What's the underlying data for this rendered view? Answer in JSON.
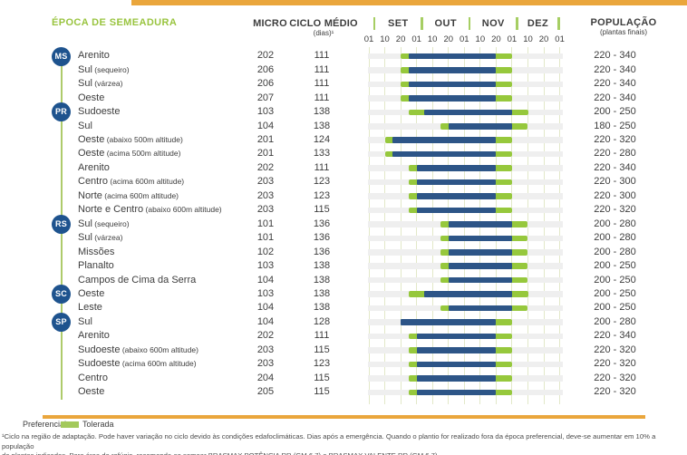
{
  "header": {
    "title": "ÉPOCA DE SEMEADURA",
    "micro": "MICRO",
    "ciclo": "CICLO MÉDIO",
    "ciclo_sub": "(dias)¹",
    "populacao": "POPULAÇÃO",
    "populacao_sub": "(plantas finais)"
  },
  "timeline": {
    "months": [
      "SET",
      "OUT",
      "NOV",
      "DEZ"
    ],
    "ticks": [
      "01",
      "10",
      "20",
      "01",
      "10",
      "20",
      "01",
      "10",
      "20",
      "01",
      "10",
      "20",
      "01"
    ]
  },
  "legend": {
    "preferencial_label": "Preferencial",
    "tolerada_label": "Tolerada"
  },
  "footnote": "¹Ciclo na região de adaptação. Pode haver variação no ciclo devido às condições edafoclimáticas. Dias após a emergência. Quando o plantio for realizado fora da época preferencial, deve-se aumentar em 10% a população\nde plantas indicadas. Para área de refúgio, recomenda-se semear BRASMAX POTÊNCIA RR (GM 6.7) e BRASMAX VALENTE RR (GM 6.7).",
  "colors": {
    "preferencial": "#2D5587",
    "tolerada": "#96C83C",
    "accent_orange": "#EAA63C",
    "badge_blue": "#1E538E",
    "title_green": "#99C43F",
    "grid_line": "#E2E8C8",
    "month_separator": "#A6CE63",
    "row_track": "#EFEFEF",
    "text": "#3D3D3D"
  },
  "chart_data": {
    "type": "gantt",
    "title": "ÉPOCA DE SEMEADURA",
    "legend": [
      "Preferencial",
      "Tolerada"
    ],
    "x_axis": {
      "unit": "ticks of ~10 days, 0 = 01/09 (SET) to 12 = 01/01",
      "tick_dates": [
        "01/09",
        "10/09",
        "20/09",
        "01/10",
        "10/10",
        "20/10",
        "01/11",
        "10/11",
        "20/11",
        "01/12",
        "10/12",
        "20/12",
        "01/01"
      ]
    },
    "rows": [
      {
        "state": "MS",
        "region": "Arenito",
        "note": "",
        "micro": "202",
        "ciclo": "111",
        "tol": [
          2,
          9
        ],
        "pref": [
          2.5,
          8
        ],
        "tol_dates": [
          "20/09",
          "01/12"
        ],
        "pref_dates": [
          "25/09",
          "20/11"
        ],
        "pop": "220 - 340"
      },
      {
        "state": "",
        "region": "Sul",
        "note": "(sequeiro)",
        "micro": "206",
        "ciclo": "111",
        "tol": [
          2,
          9
        ],
        "pref": [
          2.5,
          8
        ],
        "tol_dates": [
          "20/09",
          "01/12"
        ],
        "pref_dates": [
          "25/09",
          "20/11"
        ],
        "pop": "220 - 340"
      },
      {
        "state": "",
        "region": "Sul",
        "note": "(várzea)",
        "micro": "206",
        "ciclo": "111",
        "tol": [
          2,
          9
        ],
        "pref": [
          2.5,
          8
        ],
        "tol_dates": [
          "20/09",
          "01/12"
        ],
        "pref_dates": [
          "25/09",
          "20/11"
        ],
        "pop": "220 - 340"
      },
      {
        "state": "",
        "region": "Oeste",
        "note": "",
        "micro": "207",
        "ciclo": "111",
        "tol": [
          2,
          9
        ],
        "pref": [
          2.5,
          8
        ],
        "tol_dates": [
          "20/09",
          "01/12"
        ],
        "pref_dates": [
          "25/09",
          "20/11"
        ],
        "pop": "220 - 340"
      },
      {
        "state": "PR",
        "region": "Sudoeste",
        "note": "",
        "micro": "103",
        "ciclo": "138",
        "tol": [
          2.5,
          10
        ],
        "pref": [
          3.5,
          9
        ],
        "tol_dates": [
          "25/09",
          "10/12"
        ],
        "pref_dates": [
          "05/10",
          "01/12"
        ],
        "pop": "200 - 250"
      },
      {
        "state": "",
        "region": "Sul",
        "note": "",
        "micro": "104",
        "ciclo": "138",
        "tol": [
          4.5,
          10
        ],
        "pref": [
          5,
          9
        ],
        "tol_dates": [
          "15/10",
          "10/12"
        ],
        "pref_dates": [
          "20/10",
          "01/12"
        ],
        "pop": "180 - 250"
      },
      {
        "state": "",
        "region": "Oeste",
        "note": "(abaixo 500m altitude)",
        "micro": "201",
        "ciclo": "124",
        "tol": [
          1,
          9
        ],
        "pref": [
          1.5,
          8
        ],
        "tol_dates": [
          "10/09",
          "01/12"
        ],
        "pref_dates": [
          "15/09",
          "20/11"
        ],
        "pop": "220 - 320"
      },
      {
        "state": "",
        "region": "Oeste",
        "note": "(acima 500m altitude)",
        "micro": "201",
        "ciclo": "133",
        "tol": [
          1,
          9
        ],
        "pref": [
          1.5,
          8
        ],
        "tol_dates": [
          "10/09",
          "01/12"
        ],
        "pref_dates": [
          "15/09",
          "20/11"
        ],
        "pop": "220 - 280"
      },
      {
        "state": "",
        "region": "Arenito",
        "note": "",
        "micro": "202",
        "ciclo": "111",
        "tol": [
          2.5,
          9
        ],
        "pref": [
          3,
          8
        ],
        "tol_dates": [
          "25/09",
          "01/12"
        ],
        "pref_dates": [
          "01/10",
          "20/11"
        ],
        "pop": "220 - 340"
      },
      {
        "state": "",
        "region": "Centro",
        "note": "(acima 600m altitude)",
        "micro": "203",
        "ciclo": "123",
        "tol": [
          2.5,
          9
        ],
        "pref": [
          3,
          8
        ],
        "tol_dates": [
          "25/09",
          "01/12"
        ],
        "pref_dates": [
          "01/10",
          "20/11"
        ],
        "pop": "220 - 300"
      },
      {
        "state": "",
        "region": "Norte",
        "note": "(acima 600m altitude)",
        "micro": "203",
        "ciclo": "123",
        "tol": [
          2.5,
          9
        ],
        "pref": [
          3,
          8
        ],
        "tol_dates": [
          "25/09",
          "01/12"
        ],
        "pref_dates": [
          "01/10",
          "20/11"
        ],
        "pop": "220 - 300"
      },
      {
        "state": "",
        "region": "Norte e Centro",
        "note": "(abaixo 600m altitude)",
        "micro": "203",
        "ciclo": "115",
        "tol": [
          2.5,
          9
        ],
        "pref": [
          3,
          8
        ],
        "tol_dates": [
          "25/09",
          "01/12"
        ],
        "pref_dates": [
          "01/10",
          "20/11"
        ],
        "pop": "220 - 320"
      },
      {
        "state": "RS",
        "region": "Sul",
        "note": "(sequeiro)",
        "micro": "101",
        "ciclo": "136",
        "tol": [
          4.5,
          10
        ],
        "pref": [
          5,
          9
        ],
        "tol_dates": [
          "15/10",
          "10/12"
        ],
        "pref_dates": [
          "20/10",
          "01/12"
        ],
        "pop": "200 - 280"
      },
      {
        "state": "",
        "region": "Sul",
        "note": "(várzea)",
        "micro": "101",
        "ciclo": "136",
        "tol": [
          4.5,
          10
        ],
        "pref": [
          5,
          9
        ],
        "tol_dates": [
          "15/10",
          "10/12"
        ],
        "pref_dates": [
          "20/10",
          "01/12"
        ],
        "pop": "200 - 280"
      },
      {
        "state": "",
        "region": "Missões",
        "note": "",
        "micro": "102",
        "ciclo": "136",
        "tol": [
          4.5,
          10
        ],
        "pref": [
          5,
          9
        ],
        "tol_dates": [
          "15/10",
          "10/12"
        ],
        "pref_dates": [
          "20/10",
          "01/12"
        ],
        "pop": "200 - 280"
      },
      {
        "state": "",
        "region": "Planalto",
        "note": "",
        "micro": "103",
        "ciclo": "138",
        "tol": [
          4.5,
          10
        ],
        "pref": [
          5,
          9
        ],
        "tol_dates": [
          "15/10",
          "10/12"
        ],
        "pref_dates": [
          "20/10",
          "01/12"
        ],
        "pop": "200 - 250"
      },
      {
        "state": "",
        "region": "Campos de Cima da Serra",
        "note": "",
        "micro": "104",
        "ciclo": "138",
        "tol": [
          4.5,
          10
        ],
        "pref": [
          5,
          9
        ],
        "tol_dates": [
          "15/10",
          "10/12"
        ],
        "pref_dates": [
          "20/10",
          "01/12"
        ],
        "pop": "200 - 250"
      },
      {
        "state": "SC",
        "region": "Oeste",
        "note": "",
        "micro": "103",
        "ciclo": "138",
        "tol": [
          2.5,
          10
        ],
        "pref": [
          3.5,
          9
        ],
        "tol_dates": [
          "25/09",
          "10/12"
        ],
        "pref_dates": [
          "05/10",
          "01/12"
        ],
        "pop": "200 - 250"
      },
      {
        "state": "",
        "region": "Leste",
        "note": "",
        "micro": "104",
        "ciclo": "138",
        "tol": [
          4.5,
          10
        ],
        "pref": [
          5,
          9
        ],
        "tol_dates": [
          "15/10",
          "10/12"
        ],
        "pref_dates": [
          "20/10",
          "01/12"
        ],
        "pop": "200 - 250"
      },
      {
        "state": "SP",
        "region": "Sul",
        "note": "",
        "micro": "104",
        "ciclo": "128",
        "tol": [
          2,
          9
        ],
        "pref": [
          2,
          8
        ],
        "tol_dates": [
          "20/09",
          "01/12"
        ],
        "pref_dates": [
          "20/09",
          "20/11"
        ],
        "pop": "200 - 280"
      },
      {
        "state": "",
        "region": "Arenito",
        "note": "",
        "micro": "202",
        "ciclo": "111",
        "tol": [
          2.5,
          9
        ],
        "pref": [
          3,
          8
        ],
        "tol_dates": [
          "25/09",
          "01/12"
        ],
        "pref_dates": [
          "01/10",
          "20/11"
        ],
        "pop": "220 - 340"
      },
      {
        "state": "",
        "region": "Sudoeste",
        "note": "(abaixo 600m altitude)",
        "micro": "203",
        "ciclo": "115",
        "tol": [
          2.5,
          9
        ],
        "pref": [
          3,
          8
        ],
        "tol_dates": [
          "25/09",
          "01/12"
        ],
        "pref_dates": [
          "01/10",
          "20/11"
        ],
        "pop": "220 - 320"
      },
      {
        "state": "",
        "region": "Sudoeste",
        "note": "(acima 600m altitude)",
        "micro": "203",
        "ciclo": "123",
        "tol": [
          2.5,
          9
        ],
        "pref": [
          3,
          8
        ],
        "tol_dates": [
          "25/09",
          "01/12"
        ],
        "pref_dates": [
          "01/10",
          "20/11"
        ],
        "pop": "220 - 320"
      },
      {
        "state": "",
        "region": "Centro",
        "note": "",
        "micro": "204",
        "ciclo": "115",
        "tol": [
          2.5,
          9
        ],
        "pref": [
          3,
          8
        ],
        "tol_dates": [
          "25/09",
          "01/12"
        ],
        "pref_dates": [
          "01/10",
          "20/11"
        ],
        "pop": "220 - 320"
      },
      {
        "state": "",
        "region": "Oeste",
        "note": "",
        "micro": "205",
        "ciclo": "115",
        "tol": [
          2.5,
          9
        ],
        "pref": [
          3,
          8
        ],
        "tol_dates": [
          "25/09",
          "01/12"
        ],
        "pref_dates": [
          "01/10",
          "20/11"
        ],
        "pop": "220 - 320"
      }
    ]
  }
}
